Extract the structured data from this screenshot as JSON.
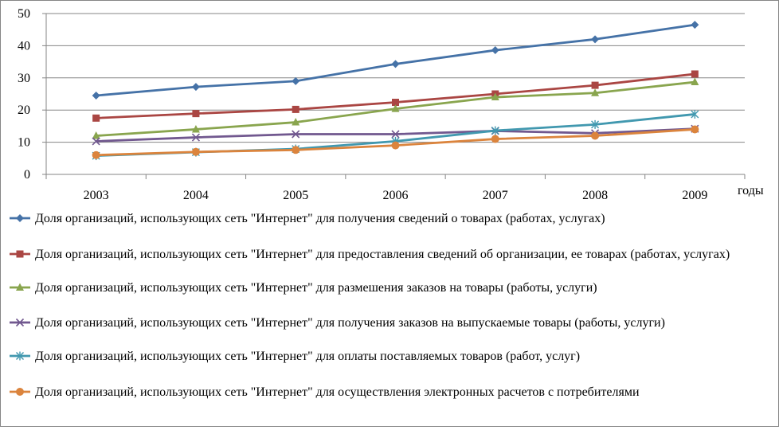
{
  "chart_data": {
    "type": "line",
    "x": [
      "2003",
      "2004",
      "2005",
      "2006",
      "2007",
      "2008",
      "2009"
    ],
    "xlabel": "годы",
    "ylabel": "",
    "ylim": [
      0,
      50
    ],
    "yticks": [
      0,
      10,
      20,
      30,
      40,
      50
    ],
    "grid": true,
    "legend_position": "bottom",
    "series": [
      {
        "name": "Доля организаций, использующих сеть \"Интернет\" для получения сведений о товарах (работах, услугах)",
        "values": [
          24.5,
          27.2,
          29.0,
          34.3,
          38.6,
          42.0,
          46.5
        ],
        "color": "#4572A7",
        "marker": "diamond"
      },
      {
        "name": "Доля организаций, использующих сеть \"Интернет\" для предоставления сведений об организации, ее товарах (работах, услугах)",
        "values": [
          17.5,
          18.9,
          20.2,
          22.4,
          25.0,
          27.7,
          31.2
        ],
        "color": "#AA4643",
        "marker": "square"
      },
      {
        "name": "Доля организаций, использующих сеть \"Интернет\" для размешения заказов на товары (работы, услуги)",
        "values": [
          12.0,
          14.0,
          16.2,
          20.4,
          24.0,
          25.3,
          28.7
        ],
        "color": "#89A54E",
        "marker": "triangle"
      },
      {
        "name": "Доля организаций, использующих сеть \"Интернет\" для получения заказов на выпускаемые товары (работы, услуги)",
        "values": [
          10.3,
          11.5,
          12.5,
          12.5,
          13.5,
          12.8,
          14.2
        ],
        "color": "#71588F",
        "marker": "x"
      },
      {
        "name": "Доля организаций, использующих сеть \"Интернет\" для оплаты поставляемых товаров (работ, услуг)",
        "values": [
          5.8,
          6.9,
          7.9,
          10.3,
          13.6,
          15.5,
          18.7
        ],
        "color": "#4198AF",
        "marker": "star"
      },
      {
        "name": "Доля организаций, использующих сеть \"Интернет\" для осуществления  электронных расчетов с потребителями",
        "values": [
          6.0,
          7.0,
          7.6,
          9.0,
          11.0,
          12.0,
          14.0
        ],
        "color": "#DB843D",
        "marker": "circle"
      }
    ]
  }
}
